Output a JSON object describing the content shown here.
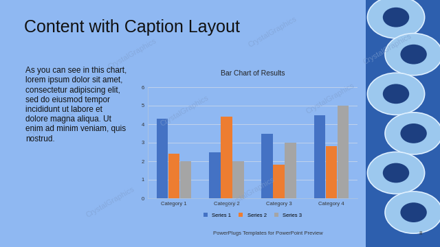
{
  "slide": {
    "title": "Content with Caption Layout",
    "caption_lines": [
      "As you can see in this chart,",
      "lorem ipsum dolor sit amet,",
      "consectetur adipiscing elit,",
      "sed do eiusmod tempor",
      "incididunt ut labore et",
      "dolore magna aliqua. Ut",
      "enim ad minim veniam, quis",
      "nostrud."
    ],
    "footer": "PowerPlugs Templates for PowerPoint Preview",
    "page": 8,
    "watermark": "CrystalGraphics"
  },
  "chart_data": {
    "type": "bar",
    "title": "Bar Chart of Results",
    "categories": [
      "Category 1",
      "Category 2",
      "Category 3",
      "Category 4"
    ],
    "series": [
      {
        "name": "Series 1",
        "color": "#4472c4",
        "values": [
          4.3,
          2.5,
          3.5,
          4.5
        ]
      },
      {
        "name": "Series 2",
        "color": "#ed7d31",
        "values": [
          2.4,
          4.4,
          1.8,
          2.8
        ]
      },
      {
        "name": "Series 3",
        "color": "#a5a5a5",
        "values": [
          2.0,
          2.0,
          3.0,
          5.0
        ]
      }
    ],
    "ylim": [
      0,
      6
    ],
    "yticks": [
      0,
      1,
      2,
      3,
      4,
      5,
      6
    ],
    "grid": true,
    "legend": "bottom"
  }
}
